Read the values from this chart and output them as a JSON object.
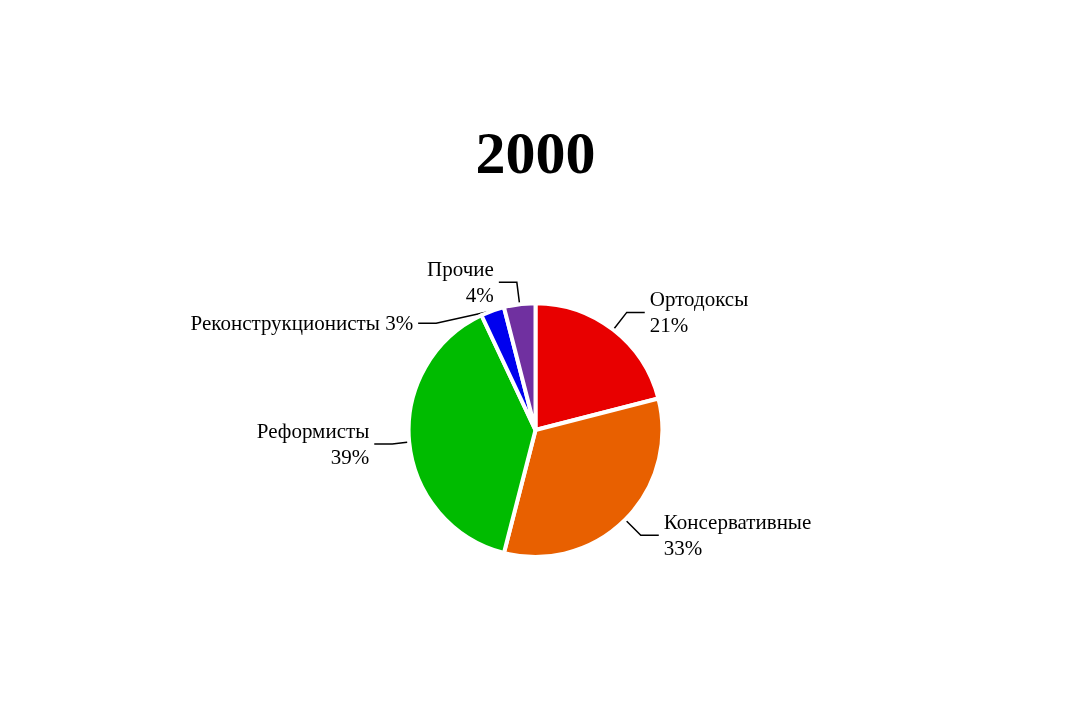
{
  "chart_data": {
    "type": "pie",
    "title": "2000",
    "categories": [
      "Ортодоксы",
      "Консервативные",
      "Реформисты",
      "Реконструкционисты",
      "Прочие"
    ],
    "values": [
      21,
      33,
      39,
      3,
      4
    ],
    "colors": [
      "#e80000",
      "#e86000",
      "#00bb00",
      "#0000ee",
      "#7030a0"
    ],
    "value_labels": [
      "21%",
      "33%",
      "39%",
      "3%",
      "4%"
    ],
    "legend": false
  }
}
